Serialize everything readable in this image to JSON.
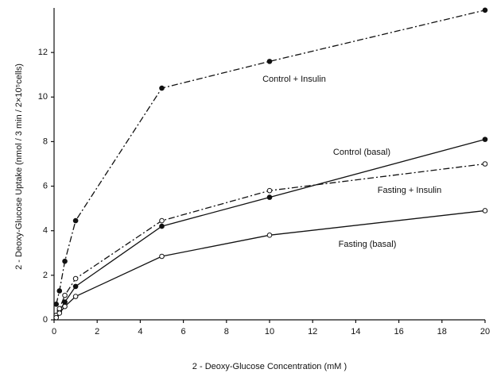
{
  "chart_data": {
    "type": "line",
    "x_label": "2 - Deoxy-Glucose Concentration (mM )",
    "y_label": "2 - Deoxy-Glucose Uptake (nmol / 3 min / 2×10⁵cells)",
    "x": [
      0.1,
      0.25,
      0.5,
      1,
      5,
      10,
      20
    ],
    "series": [
      {
        "name": "Control + Insulin",
        "color": "#111111",
        "dash": "dashdot",
        "marker": "filled",
        "values": [
          0.7,
          1.3,
          2.63,
          4.45,
          10.4,
          11.6,
          13.9
        ]
      },
      {
        "name": "Control (basal)",
        "color": "#111111",
        "dash": "solid",
        "marker": "filled",
        "values": [
          0.2,
          0.4,
          0.8,
          1.5,
          4.2,
          5.5,
          8.1
        ]
      },
      {
        "name": "Fasting + Insulin",
        "color": "#111111",
        "dash": "dashdot",
        "marker": "open",
        "values": [
          0.2,
          0.5,
          1.1,
          1.85,
          4.45,
          5.8,
          7.0
        ]
      },
      {
        "name": "Fasting (basal)",
        "color": "#111111",
        "dash": "solid",
        "marker": "open",
        "values": [
          0.1,
          0.3,
          0.6,
          1.05,
          2.85,
          3.8,
          4.9
        ]
      }
    ],
    "xlim": [
      0,
      20
    ],
    "xticks": [
      0,
      2,
      4,
      6,
      8,
      10,
      12,
      14,
      16,
      18,
      20
    ],
    "ylim": [
      0,
      14
    ],
    "yticks": [
      0,
      2,
      4,
      6,
      8,
      10,
      12
    ],
    "grid": false
  }
}
